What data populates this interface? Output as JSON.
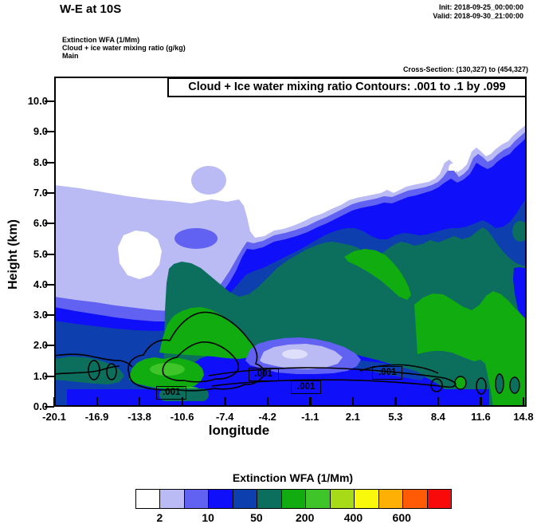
{
  "header": {
    "title": "W-E at 10S",
    "init": "Init: 2018-09-25_00:00:00",
    "valid": "Valid: 2018-09-30_21:00:00"
  },
  "annotations": {
    "field1": "Extinction WFA  (1/Mm)",
    "field2": "Cloud + ice water mixing ratio  (g/kg)",
    "field3": "Main",
    "cross_section": "Cross-Section: (130,327) to (454,327)"
  },
  "chart_data": {
    "type": "heatmap",
    "subtype": "filled-contour-vertical-cross-section",
    "title": "Cloud + Ice water mixing ratio Contours: .001 to .1 by .099",
    "xlabel": "longitude",
    "ylabel": "Height (km)",
    "x_ticks": [
      "-20.1",
      "-16.9",
      "-13.8",
      "-10.6",
      "-7.4",
      "-4.2",
      "-1.1",
      "2.1",
      "5.3",
      "8.4",
      "11.6",
      "14.8"
    ],
    "y_ticks": [
      "0.0",
      "1.0",
      "2.0",
      "3.0",
      "4.0",
      "5.0",
      "6.0",
      "7.0",
      "8.0",
      "9.0",
      "10.0"
    ],
    "xlim": [
      -20.1,
      15.0
    ],
    "ylim": [
      0,
      10.8
    ],
    "grid": false,
    "shaded_field": {
      "name": "Extinction WFA  (1/Mm)",
      "legend_position": "bottom",
      "legend_labels": [
        "2",
        "10",
        "50",
        "200",
        "400",
        "600"
      ],
      "legend_colors": [
        "#FFFFFF",
        "#BABAF5",
        "#6262F2",
        "#0F0FFA",
        "#0D3FAE",
        "#0C6F5E",
        "#10AC10",
        "#3FC42A",
        "#A8DB17",
        "#F9F90B",
        "#FFB005",
        "#FF5A05",
        "#F90A0A"
      ]
    },
    "contour_field": {
      "name": "Cloud + Ice water mixing ratio  (g/kg)",
      "levels": ".001 to .1 by .099",
      "labels": [
        {
          "text": ".001",
          "lon": -11.3,
          "height_km": 0.45
        },
        {
          "text": ".001",
          "lon": -4.4,
          "height_km": 1.05
        },
        {
          "text": ".001",
          "lon": -1.2,
          "height_km": 0.65
        },
        {
          "text": ".001",
          "lon": 4.9,
          "height_km": 1.1
        }
      ]
    },
    "aerosol_layer_top_profile": {
      "description": "approximate top height of shaded extinction (>2 1/Mm) layer read from plot",
      "lon": [
        -20.1,
        -16.9,
        -13.8,
        -10.6,
        -7.4,
        -4.2,
        -1.1,
        2.1,
        5.3,
        8.4,
        11.6,
        14.8
      ],
      "height_km": [
        7.3,
        7.1,
        6.8,
        6.6,
        6.7,
        5.5,
        6.0,
        6.4,
        6.9,
        7.6,
        8.4,
        9.3
      ]
    }
  },
  "colorbar": {
    "title": "Extinction WFA  (1/Mm)",
    "labels": [
      "2",
      "10",
      "50",
      "200",
      "400",
      "600"
    ],
    "colors": [
      "#FFFFFF",
      "#BABAF5",
      "#6262F2",
      "#0F0FFA",
      "#0D3FAE",
      "#0C6F5E",
      "#10AC10",
      "#3FC42A",
      "#A8DB17",
      "#F9F90B",
      "#FFB005",
      "#FF5A05",
      "#F90A0A"
    ]
  }
}
